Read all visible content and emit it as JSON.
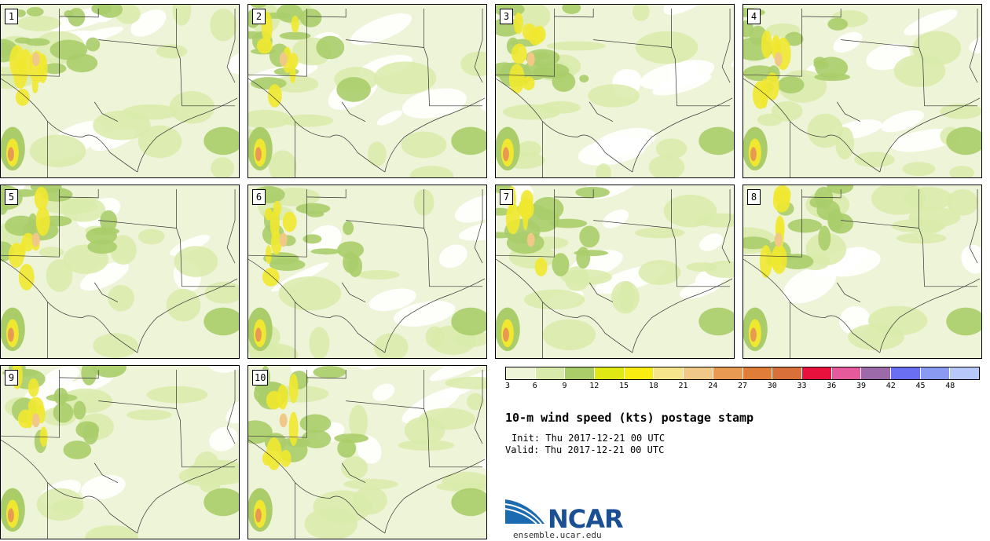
{
  "panels": [
    {
      "label": "1"
    },
    {
      "label": "2"
    },
    {
      "label": "3"
    },
    {
      "label": "4"
    },
    {
      "label": "5"
    },
    {
      "label": "6"
    },
    {
      "label": "7"
    },
    {
      "label": "8"
    },
    {
      "label": "9"
    },
    {
      "label": "10"
    }
  ],
  "colorbar": {
    "colors": [
      "#eef4d8",
      "#d9ebaa",
      "#aacd6a",
      "#e0e814",
      "#f8ec10",
      "#f6e58a",
      "#f0c888",
      "#e89a52",
      "#e07d38",
      "#d8703a",
      "#e8103c",
      "#e45a9a",
      "#9c6aa8",
      "#6a6ef0",
      "#8a9af0",
      "#b8c8f8"
    ],
    "ticks": [
      "3",
      "6",
      "9",
      "12",
      "15",
      "18",
      "21",
      "24",
      "27",
      "30",
      "33",
      "36",
      "39",
      "42",
      "45",
      "48"
    ]
  },
  "title": "10-m wind speed (kts) postage stamp",
  "init": "Init: Thu 2017-12-21 00 UTC",
  "valid": "Valid: Thu 2017-12-21 00 UTC",
  "logo": {
    "name": "NCAR",
    "site": "ensemble.ucar.edu"
  }
}
